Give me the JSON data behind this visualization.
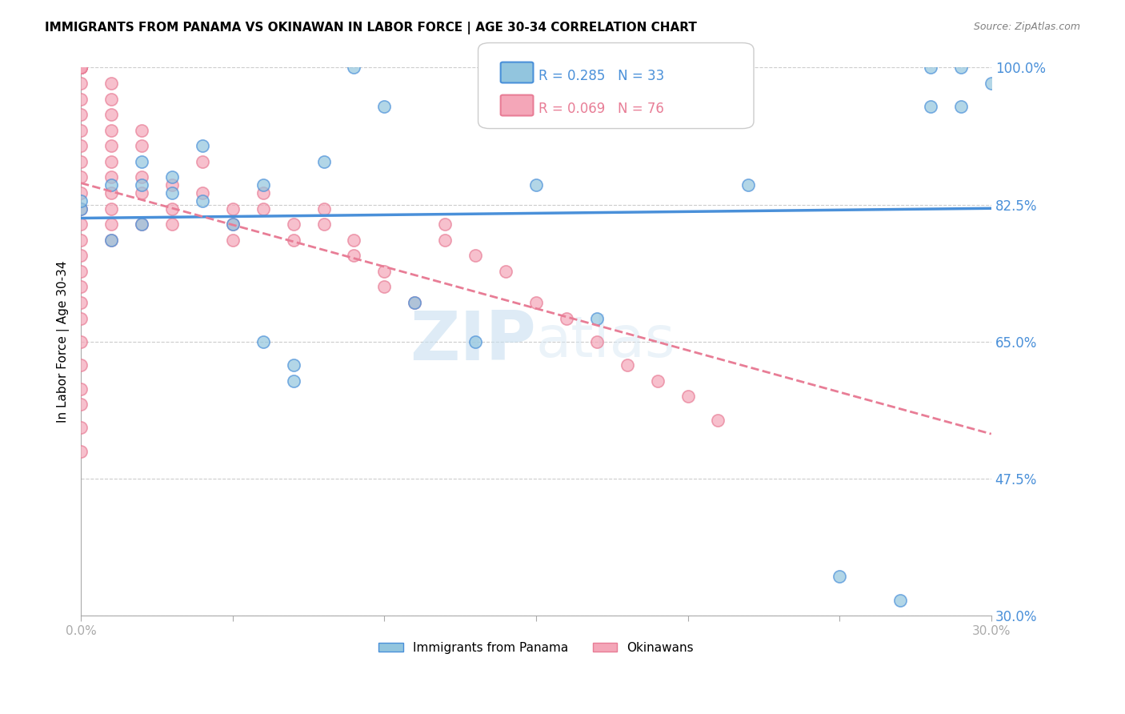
{
  "title": "IMMIGRANTS FROM PANAMA VS OKINAWAN IN LABOR FORCE | AGE 30-34 CORRELATION CHART",
  "source": "Source: ZipAtlas.com",
  "xlabel": "",
  "ylabel": "In Labor Force | Age 30-34",
  "x_min": 0.0,
  "x_max": 0.3,
  "y_min": 0.3,
  "y_max": 1.0,
  "x_ticks": [
    0.0,
    0.05,
    0.1,
    0.15,
    0.2,
    0.25,
    0.3
  ],
  "x_tick_labels": [
    "0.0%",
    "",
    "",
    "",
    "",
    "",
    "30.0%"
  ],
  "y_ticks": [
    0.3,
    0.475,
    0.65,
    0.825,
    1.0
  ],
  "y_tick_labels": [
    "30.0%",
    "47.5%",
    "65.0%",
    "82.5%",
    "100.0%"
  ],
  "panama_R": 0.285,
  "panama_N": 33,
  "okinawa_R": 0.069,
  "okinawa_N": 76,
  "panama_color": "#92c5de",
  "okinawa_color": "#f4a6b8",
  "panama_line_color": "#4a90d9",
  "okinawa_line_color": "#e87d96",
  "grid_color": "#cccccc",
  "axis_color": "#aaaaaa",
  "label_color": "#4a90d9",
  "watermark_zip": "ZIP",
  "watermark_atlas": "atlas",
  "panama_x": [
    0.0,
    0.0,
    0.01,
    0.01,
    0.02,
    0.02,
    0.02,
    0.03,
    0.03,
    0.04,
    0.04,
    0.05,
    0.06,
    0.06,
    0.07,
    0.07,
    0.08,
    0.09,
    0.1,
    0.11,
    0.13,
    0.15,
    0.17,
    0.18,
    0.2,
    0.22,
    0.25,
    0.27,
    0.28,
    0.28,
    0.29,
    0.29,
    0.3
  ],
  "panama_y": [
    0.82,
    0.83,
    0.78,
    0.85,
    0.8,
    0.85,
    0.88,
    0.84,
    0.86,
    0.83,
    0.9,
    0.8,
    0.85,
    0.65,
    0.6,
    0.62,
    0.88,
    1.0,
    0.95,
    0.7,
    0.65,
    0.85,
    0.68,
    0.95,
    1.0,
    0.85,
    0.35,
    0.32,
    0.95,
    1.0,
    0.95,
    1.0,
    0.98
  ],
  "okinawa_x": [
    0.0,
    0.0,
    0.0,
    0.0,
    0.0,
    0.0,
    0.0,
    0.0,
    0.0,
    0.0,
    0.0,
    0.0,
    0.0,
    0.0,
    0.0,
    0.0,
    0.0,
    0.0,
    0.0,
    0.0,
    0.0,
    0.0,
    0.0,
    0.0,
    0.0,
    0.0,
    0.0,
    0.0,
    0.0,
    0.0,
    0.01,
    0.01,
    0.01,
    0.01,
    0.01,
    0.01,
    0.01,
    0.01,
    0.01,
    0.01,
    0.01,
    0.02,
    0.02,
    0.02,
    0.02,
    0.02,
    0.03,
    0.03,
    0.03,
    0.04,
    0.04,
    0.05,
    0.05,
    0.05,
    0.06,
    0.06,
    0.07,
    0.07,
    0.08,
    0.08,
    0.09,
    0.09,
    0.1,
    0.1,
    0.11,
    0.12,
    0.12,
    0.13,
    0.14,
    0.15,
    0.16,
    0.17,
    0.18,
    0.19,
    0.2,
    0.21
  ],
  "okinawa_y": [
    1.0,
    1.0,
    1.0,
    1.0,
    1.0,
    1.0,
    1.0,
    1.0,
    0.98,
    0.96,
    0.94,
    0.92,
    0.9,
    0.88,
    0.86,
    0.84,
    0.82,
    0.8,
    0.78,
    0.76,
    0.74,
    0.72,
    0.7,
    0.68,
    0.65,
    0.62,
    0.59,
    0.57,
    0.54,
    0.51,
    0.98,
    0.96,
    0.94,
    0.92,
    0.9,
    0.88,
    0.86,
    0.84,
    0.82,
    0.8,
    0.78,
    0.92,
    0.9,
    0.86,
    0.84,
    0.8,
    0.85,
    0.82,
    0.8,
    0.88,
    0.84,
    0.82,
    0.8,
    0.78,
    0.84,
    0.82,
    0.8,
    0.78,
    0.82,
    0.8,
    0.78,
    0.76,
    0.74,
    0.72,
    0.7,
    0.8,
    0.78,
    0.76,
    0.74,
    0.7,
    0.68,
    0.65,
    0.62,
    0.6,
    0.58,
    0.55
  ],
  "legend_panama_label": "Immigrants from Panama",
  "legend_okinawa_label": "Okinawans"
}
